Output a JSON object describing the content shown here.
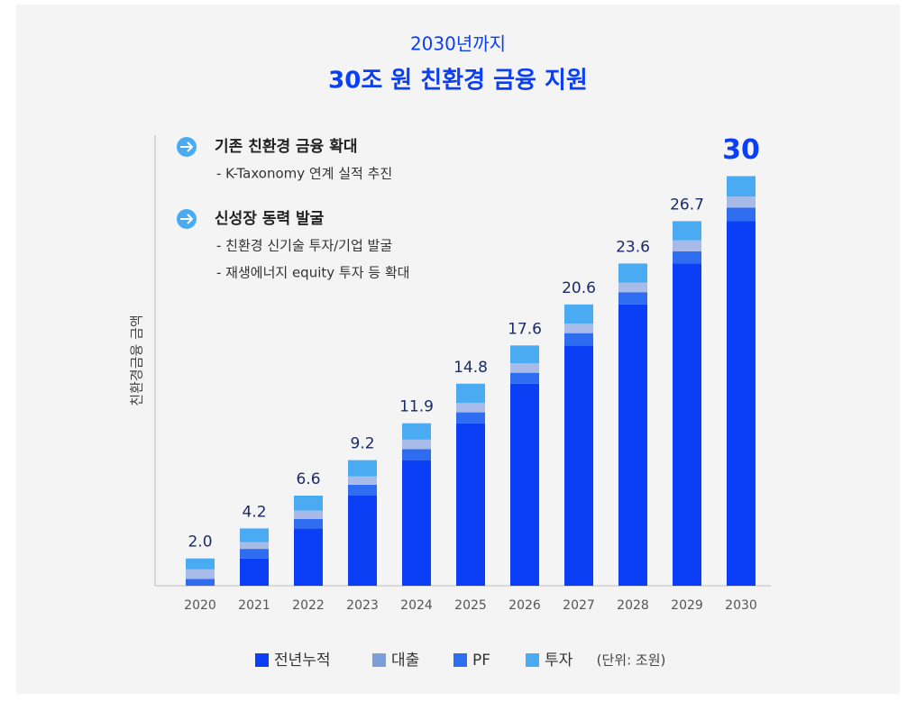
{
  "chart_data": {
    "type": "bar",
    "stacked": true,
    "title": "2030년까지",
    "subtitle": "30조 원 친환경 금융 지원",
    "y_label": "친환경금융 금액",
    "unit_note": "(단위: 조원)",
    "annotations": [
      {
        "heading": "기존 친환경 금융 확대",
        "lines": [
          "- K-Taxonomy 연계 실적 추진"
        ]
      },
      {
        "heading": "신성장 동력 발굴",
        "lines": [
          "- 친환경 신기술 투자/기업 발굴",
          "- 재생에너지 equity 투자 등 확대"
        ]
      }
    ],
    "categories": [
      "2020",
      "2021",
      "2022",
      "2023",
      "2024",
      "2025",
      "2026",
      "2027",
      "2028",
      "2029",
      "2030"
    ],
    "series": [
      {
        "name": "전년누적",
        "color": "#0b3ff5",
        "values": [
          0,
          2.0,
          4.2,
          6.6,
          9.2,
          11.9,
          14.8,
          17.6,
          20.6,
          23.6,
          26.7
        ]
      },
      {
        "name": "대출",
        "color": "#a8bbe8",
        "legend_color": "#7b9fd9",
        "values": [
          0.7,
          0.5,
          0.6,
          0.6,
          0.7,
          0.7,
          0.7,
          0.7,
          0.7,
          0.8,
          0.8
        ]
      },
      {
        "name": "PF",
        "color": "#2f6df0",
        "values": [
          0.5,
          0.7,
          0.7,
          0.8,
          0.8,
          0.8,
          0.8,
          0.9,
          0.9,
          0.9,
          1.0
        ]
      },
      {
        "name": "투자",
        "color": "#4aabf2",
        "values": [
          0.8,
          1.0,
          1.1,
          1.2,
          1.2,
          1.4,
          1.3,
          1.4,
          1.4,
          1.4,
          1.5
        ]
      }
    ],
    "totals": {
      "values": [
        2.0,
        4.2,
        6.6,
        9.2,
        11.9,
        14.8,
        17.6,
        20.6,
        23.6,
        26.7,
        30
      ],
      "value_labels": [
        "2.0",
        "4.2",
        "6.6",
        "9.2",
        "11.9",
        "14.8",
        "17.6",
        "20.6",
        "23.6",
        "26.7",
        "30"
      ]
    },
    "ylim": [
      0,
      33
    ]
  }
}
